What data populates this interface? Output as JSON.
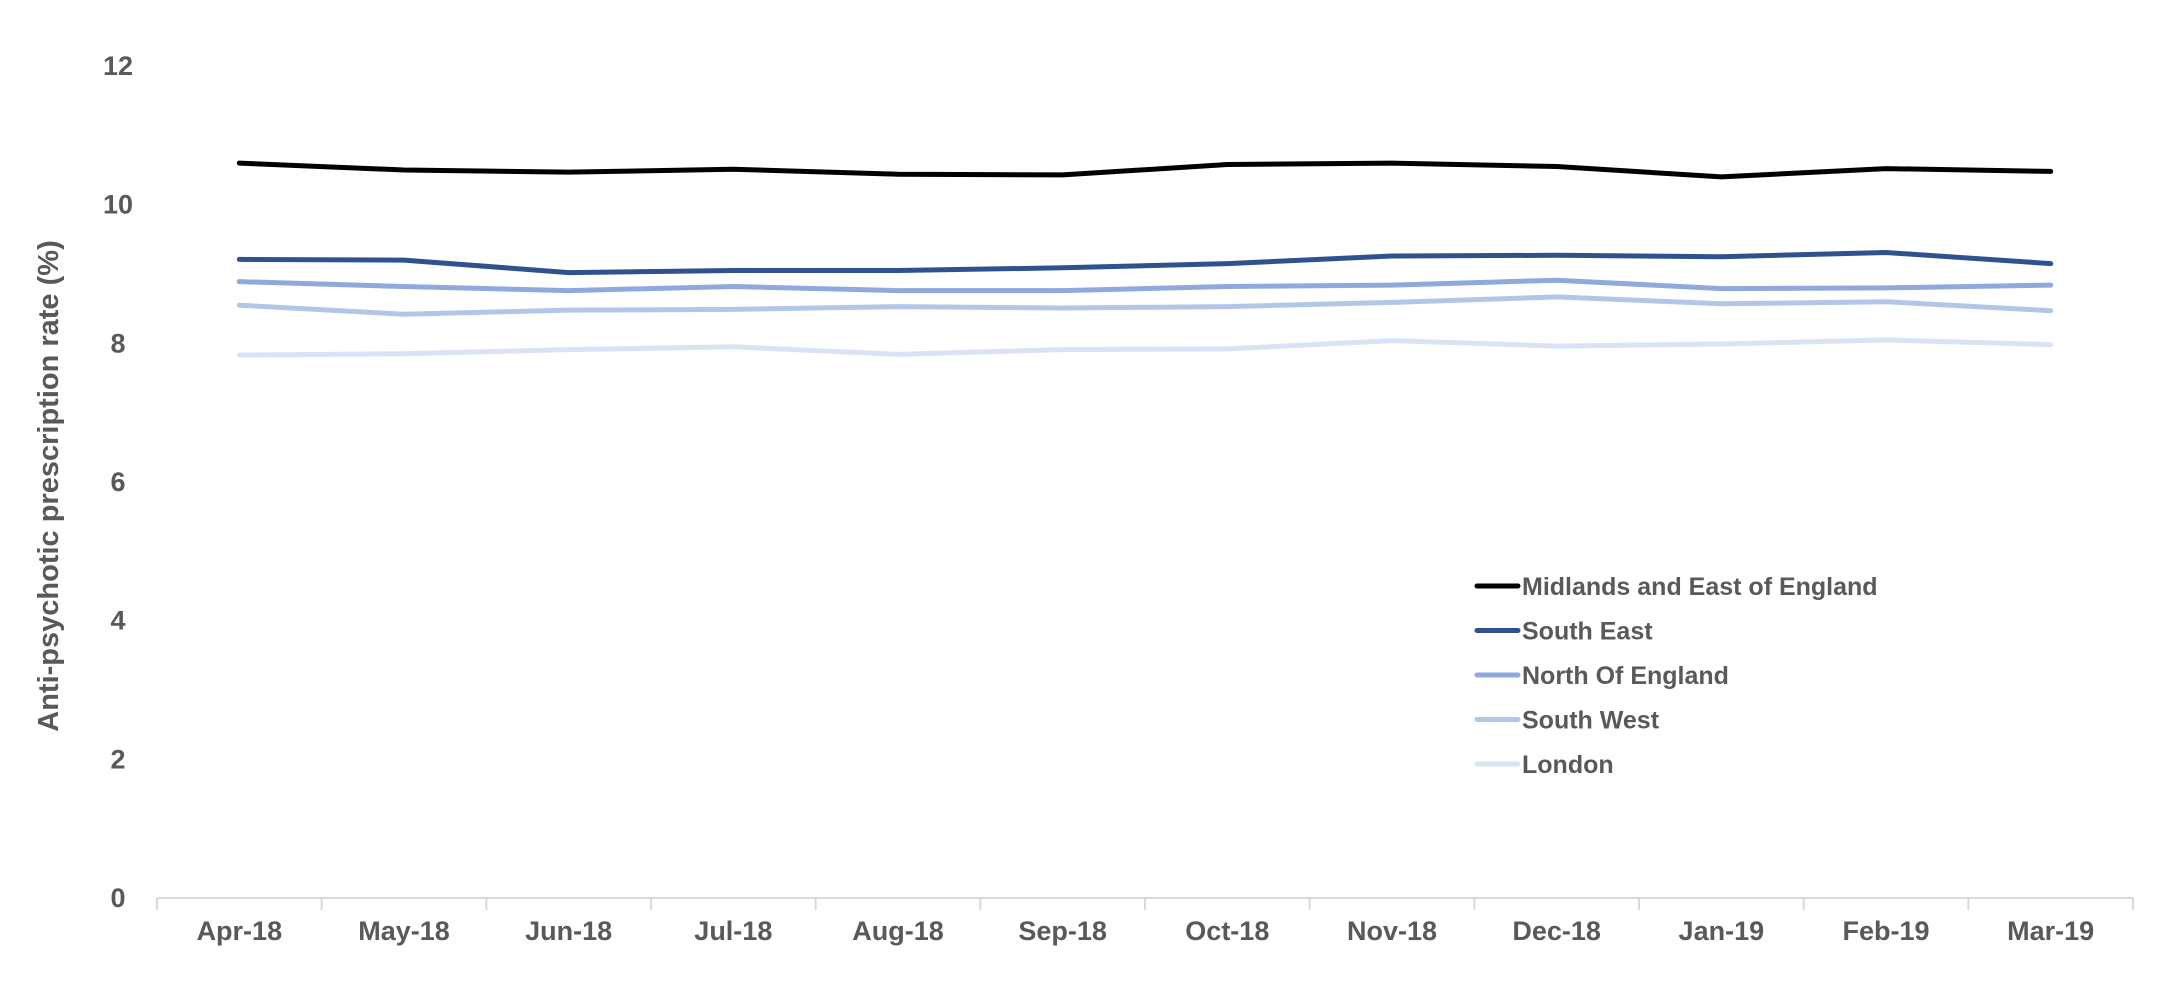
{
  "chart_data": {
    "type": "line",
    "title": "",
    "xlabel": "",
    "ylabel": "Anti-psychotic prescription rate (%)",
    "ylim": [
      0,
      12
    ],
    "yticks": [
      0,
      2,
      4,
      6,
      8,
      10,
      12
    ],
    "grid": false,
    "legend_position": "bottom-right",
    "categories": [
      "Apr-18",
      "May-18",
      "Jun-18",
      "Jul-18",
      "Aug-18",
      "Sep-18",
      "Oct-18",
      "Nov-18",
      "Dec-18",
      "Jan-19",
      "Feb-19",
      "Mar-19"
    ],
    "series": [
      {
        "name": "Midlands and East of England",
        "color": "#000000",
        "values": [
          10.6,
          10.5,
          10.47,
          10.51,
          10.44,
          10.43,
          10.58,
          10.6,
          10.55,
          10.4,
          10.52,
          10.48
        ]
      },
      {
        "name": "South East",
        "color": "#2f528f",
        "values": [
          9.21,
          9.2,
          9.02,
          9.05,
          9.05,
          9.09,
          9.15,
          9.26,
          9.27,
          9.25,
          9.31,
          9.15
        ]
      },
      {
        "name": "North Of England",
        "color": "#8fa9dc",
        "values": [
          8.89,
          8.82,
          8.76,
          8.82,
          8.76,
          8.76,
          8.82,
          8.84,
          8.91,
          8.79,
          8.8,
          8.84
        ]
      },
      {
        "name": "South West",
        "color": "#b4c6e7",
        "values": [
          8.55,
          8.42,
          8.48,
          8.49,
          8.53,
          8.51,
          8.53,
          8.59,
          8.67,
          8.57,
          8.6,
          8.47
        ]
      },
      {
        "name": "London",
        "color": "#dae3f3",
        "values": [
          7.83,
          7.85,
          7.91,
          7.95,
          7.84,
          7.91,
          7.92,
          8.04,
          7.96,
          7.99,
          8.05,
          7.98
        ]
      }
    ]
  }
}
